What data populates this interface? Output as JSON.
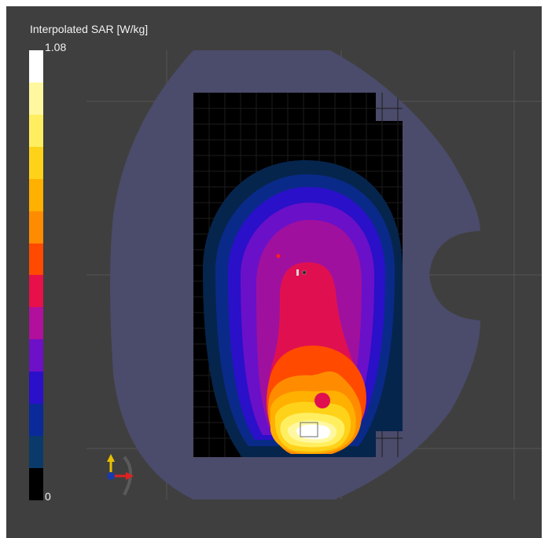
{
  "legend": {
    "title": "Interpolated SAR [W/kg]",
    "max_label": "1.08",
    "min_label": "0",
    "bands": [
      "#ffffff",
      "#fff8a0",
      "#ffef60",
      "#ffd21a",
      "#ffb000",
      "#ff8c00",
      "#ff4a00",
      "#e8104a",
      "#b0109c",
      "#6e10c8",
      "#2a10c8",
      "#0a2a9a",
      "#0a3a6a",
      "#000000"
    ]
  },
  "colors": {
    "background": "#3f3f3f",
    "phantom": "#4b4b6b",
    "grid_area": "#000000"
  },
  "icons": {
    "axis_triad": "axis-triad-icon"
  }
}
